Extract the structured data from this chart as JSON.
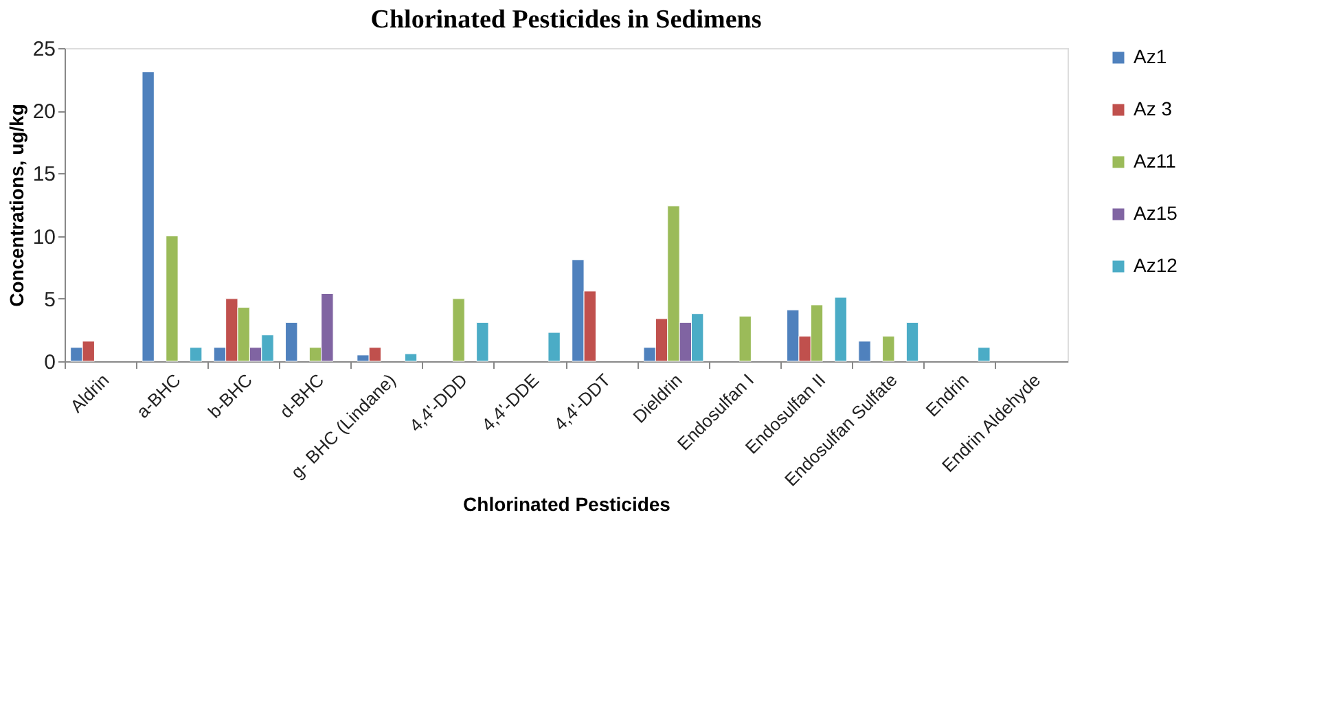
{
  "chart_data": {
    "type": "bar",
    "title": "Chlorinated Pesticides in Sedimens",
    "xlabel": "Chlorinated Pesticides",
    "ylabel": "Concentrations, ug/kg",
    "categories": [
      "Aldrin",
      "a-BHC",
      "b-BHC",
      "d-BHC",
      "g- BHC (Lindane)",
      "4,4'-DDD",
      "4,4'-DDE",
      "4,4'-DDT",
      "Dieldrin",
      "Endosulfan  I",
      "Endosulfan II",
      "Endosulfan Sulfate",
      "Endrin",
      "Endrin Aldehyde"
    ],
    "series": [
      {
        "name": "Az1",
        "color": "#4f81bd",
        "values": [
          1.1,
          23.1,
          1.1,
          3.1,
          0.5,
          null,
          null,
          8.1,
          1.1,
          null,
          4.1,
          1.6,
          null,
          null
        ]
      },
      {
        "name": "Az 3",
        "color": "#c0504d",
        "values": [
          1.6,
          null,
          5.0,
          null,
          1.1,
          null,
          null,
          5.6,
          3.4,
          null,
          2.0,
          null,
          null,
          null
        ]
      },
      {
        "name": "Az11",
        "color": "#9bbb59",
        "values": [
          null,
          10.0,
          4.3,
          1.1,
          null,
          5.0,
          null,
          null,
          12.4,
          3.6,
          4.5,
          2.0,
          null,
          null
        ]
      },
      {
        "name": "Az15",
        "color": "#8064a2",
        "values": [
          null,
          null,
          1.1,
          5.4,
          null,
          null,
          null,
          null,
          3.1,
          null,
          null,
          null,
          null,
          null
        ]
      },
      {
        "name": "Az12",
        "color": "#4bacc6",
        "values": [
          null,
          1.1,
          2.1,
          null,
          0.6,
          3.1,
          2.3,
          null,
          3.8,
          null,
          5.1,
          3.1,
          1.1,
          null
        ]
      }
    ],
    "ylim": [
      0,
      25
    ],
    "yticks": [
      0,
      5,
      10,
      15,
      20,
      25
    ],
    "grid": false,
    "legend": "right"
  }
}
